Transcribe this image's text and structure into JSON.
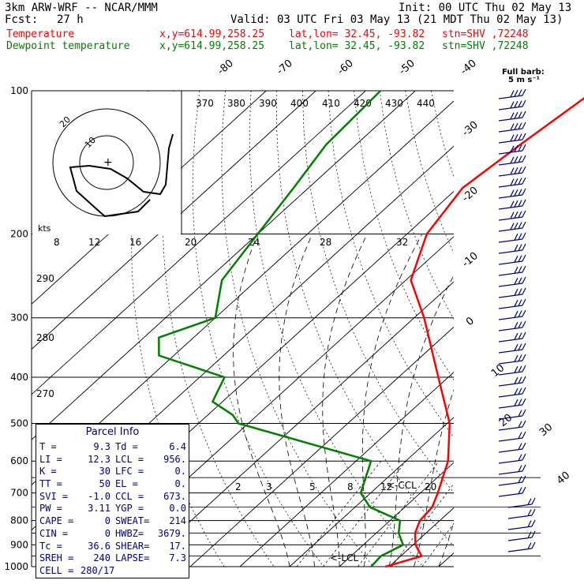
{
  "header": {
    "model": "3km ARW-WRF -- NCAR/MMM",
    "init": "Init: 00 UTC Thu 02 May 13",
    "fcst_label": "Fcst:",
    "fcst_value": "27 h",
    "valid": "Valid: 03 UTC Fri 03 May 13 (21 MDT Thu 02 May 13)",
    "lines": [
      {
        "name": "Temperature",
        "xy": "x,y=614.99,258.25",
        "latlon": "lat,lon= 32.45, -93.82",
        "stn": "stn=SHV ,72248",
        "color": "#ff0000"
      },
      {
        "name": "Dewpoint temperature",
        "xy": "x,y=614.99,258.25",
        "latlon": "lat,lon= 32.45, -93.82",
        "stn": "stn=SHV ,72248",
        "color": "#008000"
      }
    ]
  },
  "barb_label": "Full barb:",
  "barb_units": "5 m s⁻¹",
  "hodograph": {
    "units": "kts",
    "ring_labels": [
      "20",
      "10"
    ]
  },
  "parcel_info": {
    "title": "Parcel Info",
    "rows": [
      [
        "T =",
        "9.3",
        "Td =",
        "6.4"
      ],
      [
        "LI =",
        "12.3",
        "LCL =",
        "956."
      ],
      [
        "K =",
        "30",
        "LFC =",
        "0."
      ],
      [
        "TT =",
        "50",
        "EL =",
        "0."
      ],
      [
        "SVI =",
        "-1.0",
        "CCL =",
        "673."
      ],
      [
        "PW =",
        "3.11",
        "YGP =",
        "0.0"
      ],
      [
        "CAPE =",
        "0",
        "SWEAT=",
        "214"
      ],
      [
        "CIN =",
        "0",
        "HWBZ=",
        "3679."
      ],
      [
        "Tc =",
        "36.6",
        "SHEAR=",
        "17."
      ],
      [
        "SREH =",
        "240",
        "LAPSE=",
        "7.3"
      ],
      [
        "CELL =",
        "280/17",
        "",
        ""
      ]
    ]
  },
  "chart_data": {
    "type": "line",
    "title": "",
    "xlabel": "",
    "ylabel": "",
    "pressure_levels": [
      "100",
      "200",
      "300",
      "400",
      "500",
      "600",
      "700",
      "800",
      "900",
      "1000"
    ],
    "skew_temp_labels": [
      "-80",
      "-70",
      "-60",
      "-50",
      "-40",
      "-30",
      "-20",
      "-10",
      "0",
      "10",
      "20",
      "30",
      "40"
    ],
    "theta_labels": [
      "370",
      "380",
      "390",
      "400",
      "410",
      "420",
      "430",
      "440"
    ],
    "theta_e_labels": [
      "290",
      "280",
      "270"
    ],
    "theta_e_row": [
      "8",
      "12",
      "16",
      "20",
      "24",
      "28",
      "32"
    ],
    "mixing_ratio_labels": [
      "2",
      "3",
      "5",
      "8",
      "12",
      "20"
    ],
    "annotations": [
      "<-CCL",
      "<-LCL"
    ],
    "series": [
      {
        "name": "Temperature",
        "color": "#ff0000",
        "points": [
          [
            100,
            -54
          ],
          [
            130,
            -57
          ],
          [
            160,
            -59
          ],
          [
            200,
            -56
          ],
          [
            250,
            -49
          ],
          [
            300,
            -38
          ],
          [
            400,
            -22
          ],
          [
            500,
            -9.5
          ],
          [
            600,
            -1.5
          ],
          [
            700,
            3.5
          ],
          [
            750,
            5.5
          ],
          [
            800,
            6
          ],
          [
            850,
            7.8
          ],
          [
            900,
            10.5
          ],
          [
            950,
            14.2
          ],
          [
            1000,
            9.3
          ]
        ]
      },
      {
        "name": "Dewpoint temperature",
        "color": "#008000",
        "points": [
          [
            100,
            -97
          ],
          [
            130,
            -96
          ],
          [
            160,
            -93
          ],
          [
            200,
            -90
          ],
          [
            250,
            -87
          ],
          [
            300,
            -80
          ],
          [
            330,
            -87
          ],
          [
            360,
            -83
          ],
          [
            400,
            -65
          ],
          [
            450,
            -62
          ],
          [
            480,
            -55
          ],
          [
            500,
            -52
          ],
          [
            600,
            -17
          ],
          [
            700,
            -12
          ],
          [
            750,
            -7
          ],
          [
            800,
            2
          ],
          [
            850,
            4.5
          ],
          [
            900,
            8
          ],
          [
            950,
            6
          ],
          [
            1000,
            6.4
          ]
        ]
      }
    ]
  }
}
